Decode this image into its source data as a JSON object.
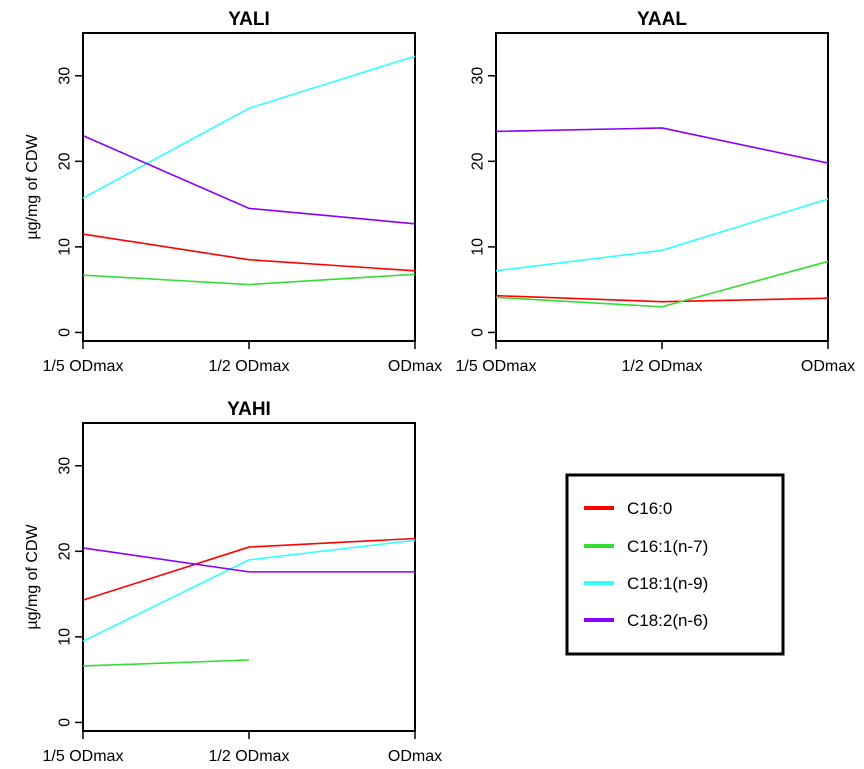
{
  "series_legend": [
    {
      "name": "C16:0",
      "color": "#ff0000"
    },
    {
      "name": "C16:1(n-7)",
      "color": "#33dd33"
    },
    {
      "name": "C18:1(n-9)",
      "color": "#33ffff"
    },
    {
      "name": "C18:2(n-6)",
      "color": "#8800ff"
    }
  ],
  "chart_data": [
    {
      "type": "line",
      "title": "YALI",
      "ylabel": "µg/mg of CDW",
      "xlabel": "",
      "categories": [
        "1/5 ODmax",
        "1/2 ODmax",
        "ODmax"
      ],
      "yticks": [
        0,
        10,
        20,
        30
      ],
      "ylim": [
        -1,
        35
      ],
      "series": [
        {
          "name": "C16:0",
          "color": "#ff0000",
          "values": [
            11.5,
            8.5,
            7.2
          ]
        },
        {
          "name": "C16:1(n-7)",
          "color": "#33dd33",
          "values": [
            6.7,
            5.6,
            6.8
          ]
        },
        {
          "name": "C18:1(n-9)",
          "color": "#33ffff",
          "values": [
            15.7,
            26.2,
            32.3
          ]
        },
        {
          "name": "C18:2(n-6)",
          "color": "#8800ff",
          "values": [
            23.0,
            14.5,
            12.7
          ]
        }
      ]
    },
    {
      "type": "line",
      "title": "YAAL",
      "ylabel": "",
      "xlabel": "",
      "categories": [
        "1/5 ODmax",
        "1/2 ODmax",
        "ODmax"
      ],
      "yticks": [
        0,
        10,
        20,
        30
      ],
      "ylim": [
        -1,
        35
      ],
      "series": [
        {
          "name": "C16:0",
          "color": "#ff0000",
          "values": [
            4.3,
            3.6,
            4.0
          ]
        },
        {
          "name": "C16:1(n-7)",
          "color": "#33dd33",
          "values": [
            4.1,
            3.0,
            8.3
          ]
        },
        {
          "name": "C18:1(n-9)",
          "color": "#33ffff",
          "values": [
            7.2,
            9.6,
            15.6
          ]
        },
        {
          "name": "C18:2(n-6)",
          "color": "#8800ff",
          "values": [
            23.5,
            23.9,
            19.8
          ]
        }
      ]
    },
    {
      "type": "line",
      "title": "YAHI",
      "ylabel": "µg/mg of CDW",
      "xlabel": "",
      "categories": [
        "1/5 ODmax",
        "1/2 ODmax",
        "ODmax"
      ],
      "yticks": [
        0,
        10,
        20,
        30
      ],
      "ylim": [
        -1,
        35
      ],
      "series": [
        {
          "name": "C16:0",
          "color": "#ff0000",
          "values": [
            14.3,
            20.5,
            21.5
          ]
        },
        {
          "name": "C16:1(n-7)",
          "color": "#33dd33",
          "values": [
            6.6,
            7.3,
            null
          ]
        },
        {
          "name": "C18:1(n-9)",
          "color": "#33ffff",
          "values": [
            9.5,
            19.0,
            21.3
          ]
        },
        {
          "name": "C18:2(n-6)",
          "color": "#8800ff",
          "values": [
            20.4,
            17.6,
            17.6
          ]
        }
      ]
    }
  ]
}
